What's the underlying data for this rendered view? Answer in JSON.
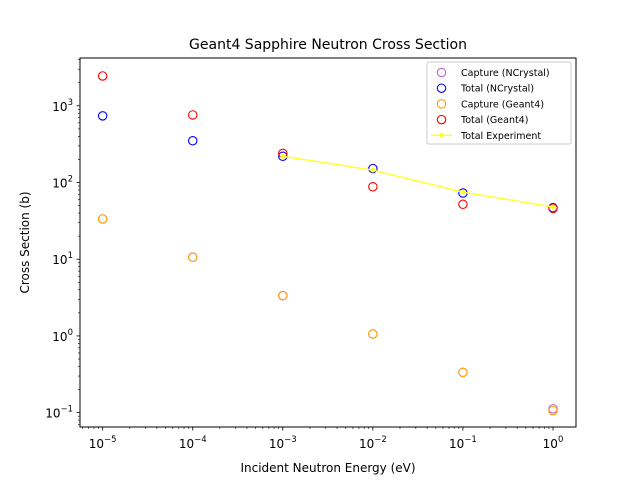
{
  "chart_data": {
    "type": "scatter",
    "title": "Geant4 Sapphire Neutron Cross Section",
    "xlabel": "Incident Neutron Energy (eV)",
    "ylabel": "Cross Section (b)",
    "xscale": "log",
    "yscale": "log",
    "xlim": [
      5.6e-06,
      1.8
    ],
    "ylim": [
      0.065,
      4200
    ],
    "xticks": [
      {
        "value": 1e-05,
        "base": "10",
        "exp": "−5"
      },
      {
        "value": 0.0001,
        "base": "10",
        "exp": "−4"
      },
      {
        "value": 0.001,
        "base": "10",
        "exp": "−3"
      },
      {
        "value": 0.01,
        "base": "10",
        "exp": "−2"
      },
      {
        "value": 0.1,
        "base": "10",
        "exp": "−1"
      },
      {
        "value": 1,
        "base": "10",
        "exp": "0"
      }
    ],
    "yticks": [
      {
        "value": 0.1,
        "base": "10",
        "exp": "−1"
      },
      {
        "value": 1,
        "base": "10",
        "exp": "0"
      },
      {
        "value": 10,
        "base": "10",
        "exp": "1"
      },
      {
        "value": 100,
        "base": "10",
        "exp": "2"
      },
      {
        "value": 1000,
        "base": "10",
        "exp": "3"
      }
    ],
    "grid": false,
    "legend_position": "top-right",
    "series": [
      {
        "name": "Capture (NCrystal)",
        "style": "open-circle",
        "color": "#bf5fd6",
        "x": [
          1e-05,
          0.0001,
          0.001,
          0.01,
          0.1,
          1
        ],
        "y": [
          33.5,
          10.6,
          3.35,
          1.06,
          0.335,
          0.112
        ]
      },
      {
        "name": "Total (NCrystal)",
        "style": "open-circle",
        "color": "#0000ff",
        "x": [
          1e-05,
          0.0001,
          0.001,
          0.01,
          0.1,
          1
        ],
        "y": [
          740,
          350,
          220,
          152,
          73,
          47
        ]
      },
      {
        "name": "Capture (Geant4)",
        "style": "open-circle",
        "color": "#ffa500",
        "x": [
          1e-05,
          0.0001,
          0.001,
          0.01,
          0.1,
          1
        ],
        "y": [
          33.5,
          10.6,
          3.35,
          1.06,
          0.335,
          0.106
        ]
      },
      {
        "name": "Total (Geant4)",
        "style": "open-circle",
        "color": "#ff0000",
        "x": [
          1e-05,
          0.0001,
          0.001,
          0.01,
          0.1,
          1
        ],
        "y": [
          2450,
          760,
          240,
          88,
          52,
          46
        ]
      },
      {
        "name": "Total Experiment",
        "style": "line-dot",
        "color": "#ffff33",
        "x": [
          0.001,
          0.01,
          0.1,
          1
        ],
        "y": [
          220,
          145,
          75,
          48
        ]
      }
    ]
  }
}
